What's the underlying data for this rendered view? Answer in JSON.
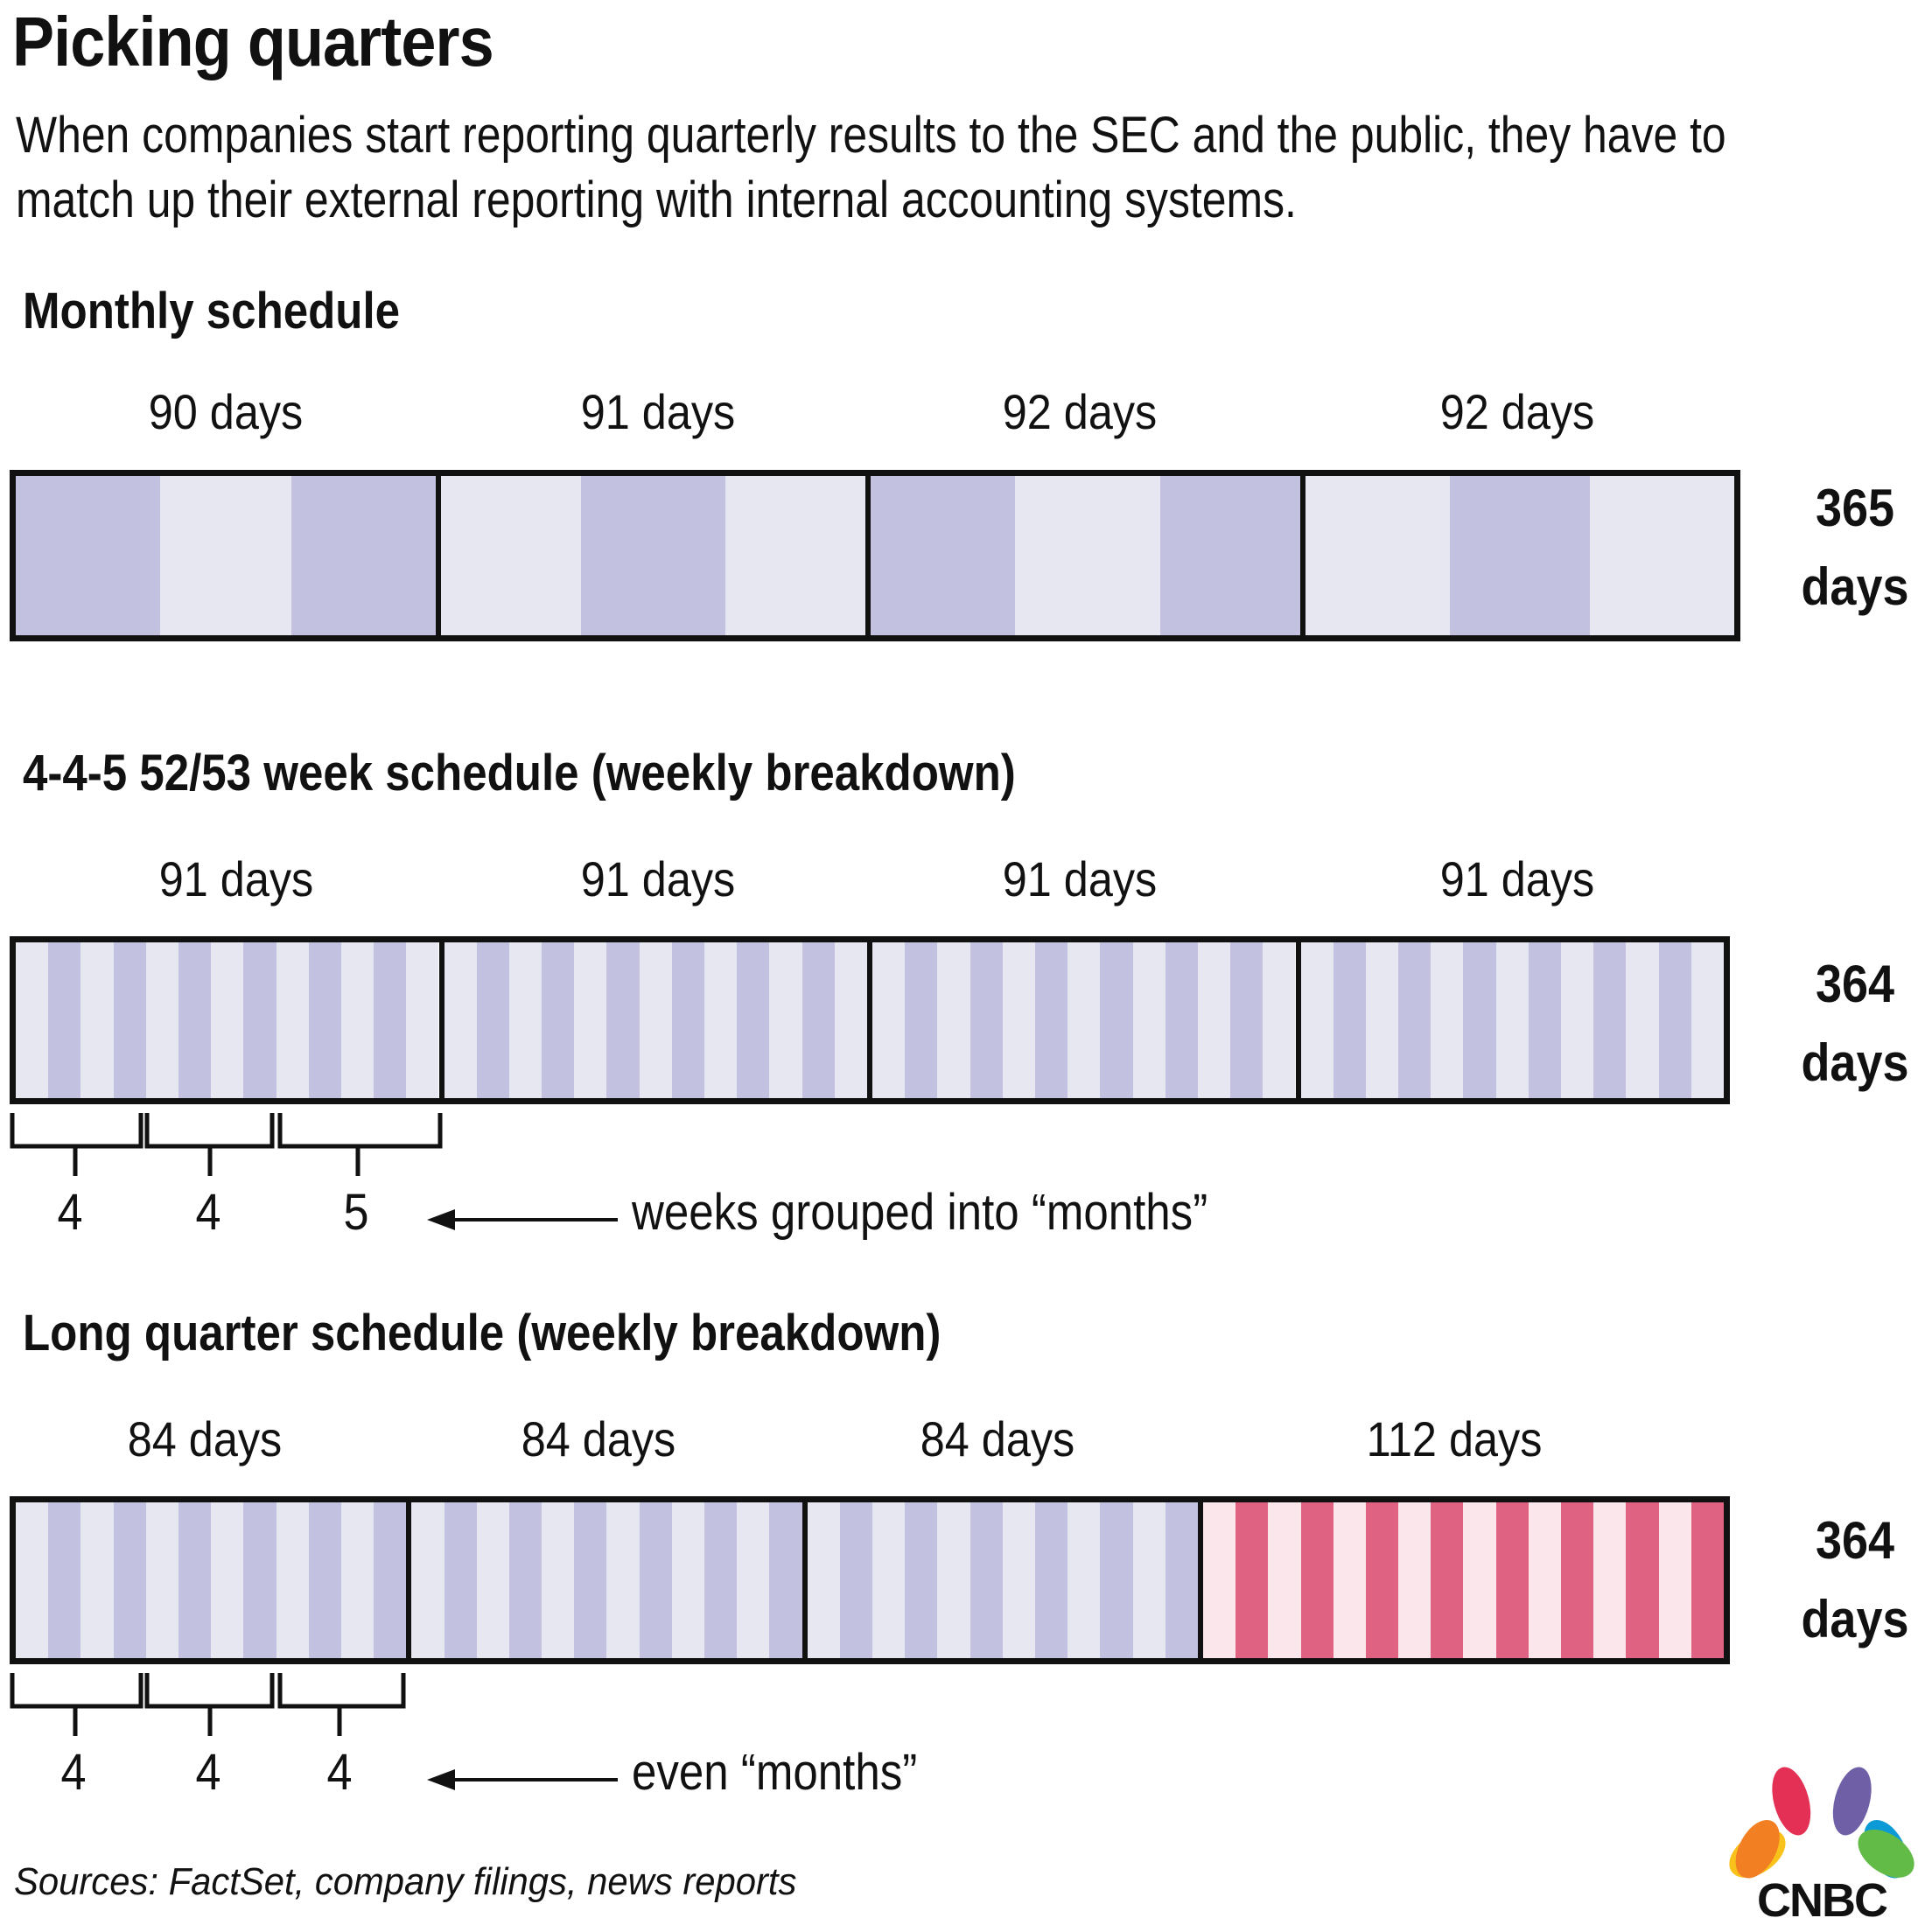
{
  "title": "Picking quarters",
  "subtitle": "When companies start reporting quarterly results to the SEC and the public, they have to match up their external reporting with internal accounting systems.",
  "colors": {
    "purple_dark": "#c2c1e0",
    "purple_light": "#e7e7f2",
    "pink_dark": "#e06282",
    "pink_light": "#fbe6ec",
    "outline": "#111111"
  },
  "sections": [
    {
      "heading": "Monthly schedule",
      "quarters": [
        {
          "label": "90 days",
          "days": 90,
          "style": "monthly",
          "segments": [
            31,
            28,
            31
          ],
          "start_dark": true
        },
        {
          "label": "91 days",
          "days": 91,
          "style": "monthly",
          "segments": [
            30,
            31,
            30
          ],
          "start_dark": false
        },
        {
          "label": "92 days",
          "days": 92,
          "style": "monthly",
          "segments": [
            31,
            31,
            30
          ],
          "start_dark": true
        },
        {
          "label": "92 days",
          "days": 92,
          "style": "monthly",
          "segments": [
            31,
            30,
            31
          ],
          "start_dark": false
        }
      ],
      "total_number": "365",
      "total_unit": "days"
    },
    {
      "heading": "4-4-5 52/53 week schedule (weekly breakdown)",
      "quarters": [
        {
          "label": "91 days",
          "days": 91,
          "style": "weekly",
          "weeks": 13,
          "color": "purple"
        },
        {
          "label": "91 days",
          "days": 91,
          "style": "weekly",
          "weeks": 13,
          "color": "purple"
        },
        {
          "label": "91 days",
          "days": 91,
          "style": "weekly",
          "weeks": 13,
          "color": "purple"
        },
        {
          "label": "91 days",
          "days": 91,
          "style": "weekly",
          "weeks": 13,
          "color": "purple"
        }
      ],
      "total_number": "364",
      "total_unit": "days",
      "groups": [
        "4",
        "4",
        "5"
      ],
      "note": "weeks grouped into “months”"
    },
    {
      "heading": "Long quarter schedule (weekly breakdown)",
      "quarters": [
        {
          "label": "84 days",
          "days": 84,
          "style": "weekly",
          "weeks": 12,
          "color": "purple"
        },
        {
          "label": "84 days",
          "days": 84,
          "style": "weekly",
          "weeks": 12,
          "color": "purple"
        },
        {
          "label": "84 days",
          "days": 84,
          "style": "weekly",
          "weeks": 12,
          "color": "purple"
        },
        {
          "label": "112 days",
          "days": 112,
          "style": "weekly",
          "weeks": 16,
          "color": "pink"
        }
      ],
      "total_number": "364",
      "total_unit": "days",
      "groups": [
        "4",
        "4",
        "4"
      ],
      "note": "even “months”"
    }
  ],
  "source": "Sources: FactSet, company filings, news reports",
  "logo_text": "CNBC"
}
